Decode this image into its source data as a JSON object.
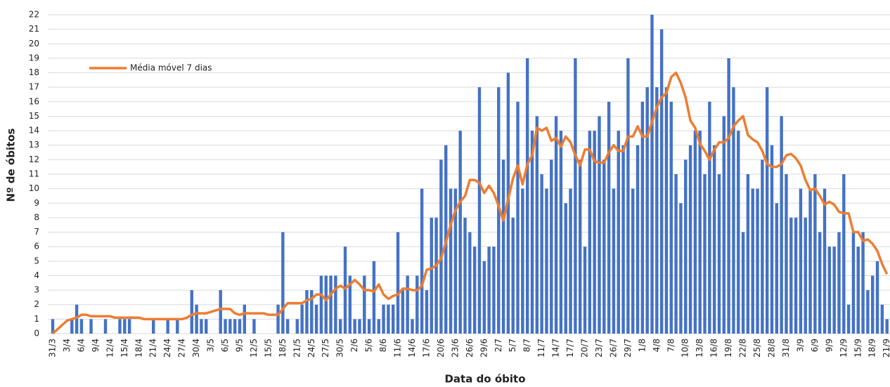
{
  "chart_data": {
    "type": "bar",
    "x_label": "Data do óbito",
    "y_label": "Nº de óbitos",
    "categories": [
      "31/3",
      null,
      null,
      "3/4",
      null,
      null,
      "6/4",
      null,
      null,
      "9/4",
      null,
      null,
      "12/4",
      null,
      null,
      "15/4",
      null,
      null,
      "18/4",
      null,
      null,
      "21/4",
      null,
      null,
      "24/4",
      null,
      null,
      "27/4",
      null,
      null,
      "30/4",
      null,
      null,
      "3/5",
      null,
      null,
      "6/5",
      null,
      null,
      "9/5",
      null,
      null,
      "12/5",
      null,
      null,
      "15/5",
      null,
      null,
      "18/5",
      null,
      null,
      "21/5",
      null,
      null,
      "24/5",
      null,
      null,
      "27/5",
      null,
      null,
      "30/5",
      null,
      null,
      "2/6",
      null,
      null,
      "5/6",
      null,
      null,
      "8/6",
      null,
      null,
      "11/6",
      null,
      null,
      "14/6",
      null,
      null,
      "17/6",
      null,
      null,
      "20/6",
      null,
      null,
      "23/6",
      null,
      null,
      "26/6",
      null,
      null,
      "29/6",
      null,
      null,
      "2/7",
      null,
      null,
      "5/7",
      null,
      null,
      "8/7",
      null,
      null,
      "11/7",
      null,
      null,
      "14/7",
      null,
      null,
      "17/7",
      null,
      null,
      "20/7",
      null,
      null,
      "23/7",
      null,
      null,
      "26/7",
      null,
      null,
      "29/7",
      null,
      null,
      "1/8",
      null,
      null,
      "4/8",
      null,
      null,
      "7/8",
      null,
      null,
      "10/8",
      null,
      null,
      "13/8",
      null,
      null,
      "16/8",
      null,
      null,
      "19/8",
      null,
      null,
      "22/8",
      null,
      null,
      "25/8",
      null,
      null,
      "28/8",
      null,
      null,
      "31/8",
      null,
      null,
      "3/9",
      null,
      null,
      "6/9",
      null,
      null,
      "9/9",
      null,
      null,
      "12/9",
      null,
      null,
      "15/9",
      null,
      null,
      "18/9",
      null,
      null,
      "21/9"
    ],
    "series": [
      {
        "type": "bar",
        "color": "#4472c4",
        "values": [
          1,
          0,
          0,
          0,
          1,
          2,
          1,
          0,
          1,
          0,
          0,
          1,
          0,
          0,
          1,
          1,
          1,
          0,
          0,
          0,
          0,
          1,
          0,
          0,
          1,
          0,
          1,
          0,
          0,
          3,
          2,
          1,
          1,
          0,
          0,
          3,
          1,
          1,
          1,
          1,
          2,
          0,
          1,
          0,
          0,
          0,
          0,
          2,
          7,
          1,
          0,
          1,
          2,
          3,
          3,
          2,
          4,
          4,
          4,
          4,
          1,
          6,
          4,
          1,
          1,
          4,
          1,
          5,
          1,
          2,
          2,
          2,
          7,
          3,
          4,
          1,
          4,
          10,
          3,
          8,
          8,
          12,
          13,
          10,
          10,
          14,
          8,
          7,
          6,
          17,
          5,
          6,
          6,
          17,
          12,
          18,
          8,
          16,
          10,
          19,
          14,
          15,
          11,
          10,
          12,
          15,
          14,
          9,
          10,
          19,
          12,
          6,
          14,
          14,
          15,
          12,
          16,
          10,
          14,
          13,
          19,
          10,
          13,
          16,
          17,
          22,
          17,
          21,
          17,
          16,
          11,
          9,
          12,
          13,
          14,
          14,
          11,
          16,
          13,
          11,
          15,
          19,
          17,
          14,
          7,
          11,
          10,
          10,
          12,
          17,
          13,
          9,
          15,
          11,
          8,
          8,
          10,
          8,
          10,
          11,
          7,
          10,
          6,
          6,
          7,
          11,
          2,
          7,
          6,
          7,
          3,
          4,
          5,
          2,
          1
        ]
      },
      {
        "type": "line",
        "name": "Média móvel 7 dias",
        "color": "#ed7d31",
        "values": [
          0,
          0.3,
          0.6,
          0.9,
          1,
          1.1,
          1.3,
          1.3,
          1.2,
          1.2,
          1.2,
          1.2,
          1.2,
          1.1,
          1.1,
          1.1,
          1.1,
          1.1,
          1.1,
          1,
          1,
          1,
          1,
          1,
          1,
          1,
          1,
          1,
          1.1,
          1.3,
          1.4,
          1.4,
          1.4,
          1.5,
          1.6,
          1.7,
          1.7,
          1.7,
          1.4,
          1.3,
          1.4,
          1.4,
          1.4,
          1.4,
          1.4,
          1.3,
          1.3,
          1.3,
          1.7,
          2.1,
          2.1,
          2.1,
          2.1,
          2.3,
          2.4,
          2.7,
          2.7,
          2.3,
          2.7,
          3.1,
          3.3,
          3.1,
          3.4,
          3.7,
          3.4,
          3,
          3,
          2.9,
          3.4,
          2.7,
          2.4,
          2.6,
          2.7,
          3.1,
          3.1,
          3,
          3,
          3.3,
          4.4,
          4.5,
          4.7,
          5.2,
          6.3,
          7.5,
          8.5,
          9.1,
          9.5,
          10.6,
          10.6,
          10.4,
          9.7,
          10.2,
          9.7,
          8.8,
          7.8,
          9.3,
          10.7,
          11.6,
          10.3,
          11.7,
          12.3,
          14.2,
          14,
          14.2,
          13.3,
          13.5,
          12.9,
          13.6,
          13.2,
          12.3,
          11.6,
          12.7,
          12.7,
          11.9,
          11.8,
          11.8,
          12.5,
          13,
          12.6,
          12.6,
          13.6,
          13.6,
          14.3,
          13.6,
          13.6,
          14.6,
          15.6,
          16.3,
          16.6,
          17.7,
          18,
          17.3,
          16.3,
          14.7,
          14.2,
          13.1,
          12.6,
          12,
          12.7,
          13.2,
          13.2,
          13.5,
          14.3,
          14.7,
          15,
          13.7,
          13.4,
          13.2,
          12.6,
          11.7,
          11.5,
          11.5,
          11.7,
          12.3,
          12.4,
          12.1,
          11.6,
          10.6,
          9.9,
          10,
          9.5,
          8.9,
          9.1,
          8.9,
          8.4,
          8.3,
          8.3,
          7,
          7,
          6.4,
          6.5,
          6.2,
          5.7,
          4.8,
          4.1
        ]
      }
    ],
    "ylim": [
      0,
      22
    ],
    "yticks": [
      0,
      1,
      2,
      3,
      4,
      5,
      6,
      7,
      8,
      9,
      10,
      11,
      12,
      13,
      14,
      15,
      16,
      17,
      18,
      19,
      20,
      21,
      22
    ],
    "grid": true,
    "legend": "upper left"
  }
}
